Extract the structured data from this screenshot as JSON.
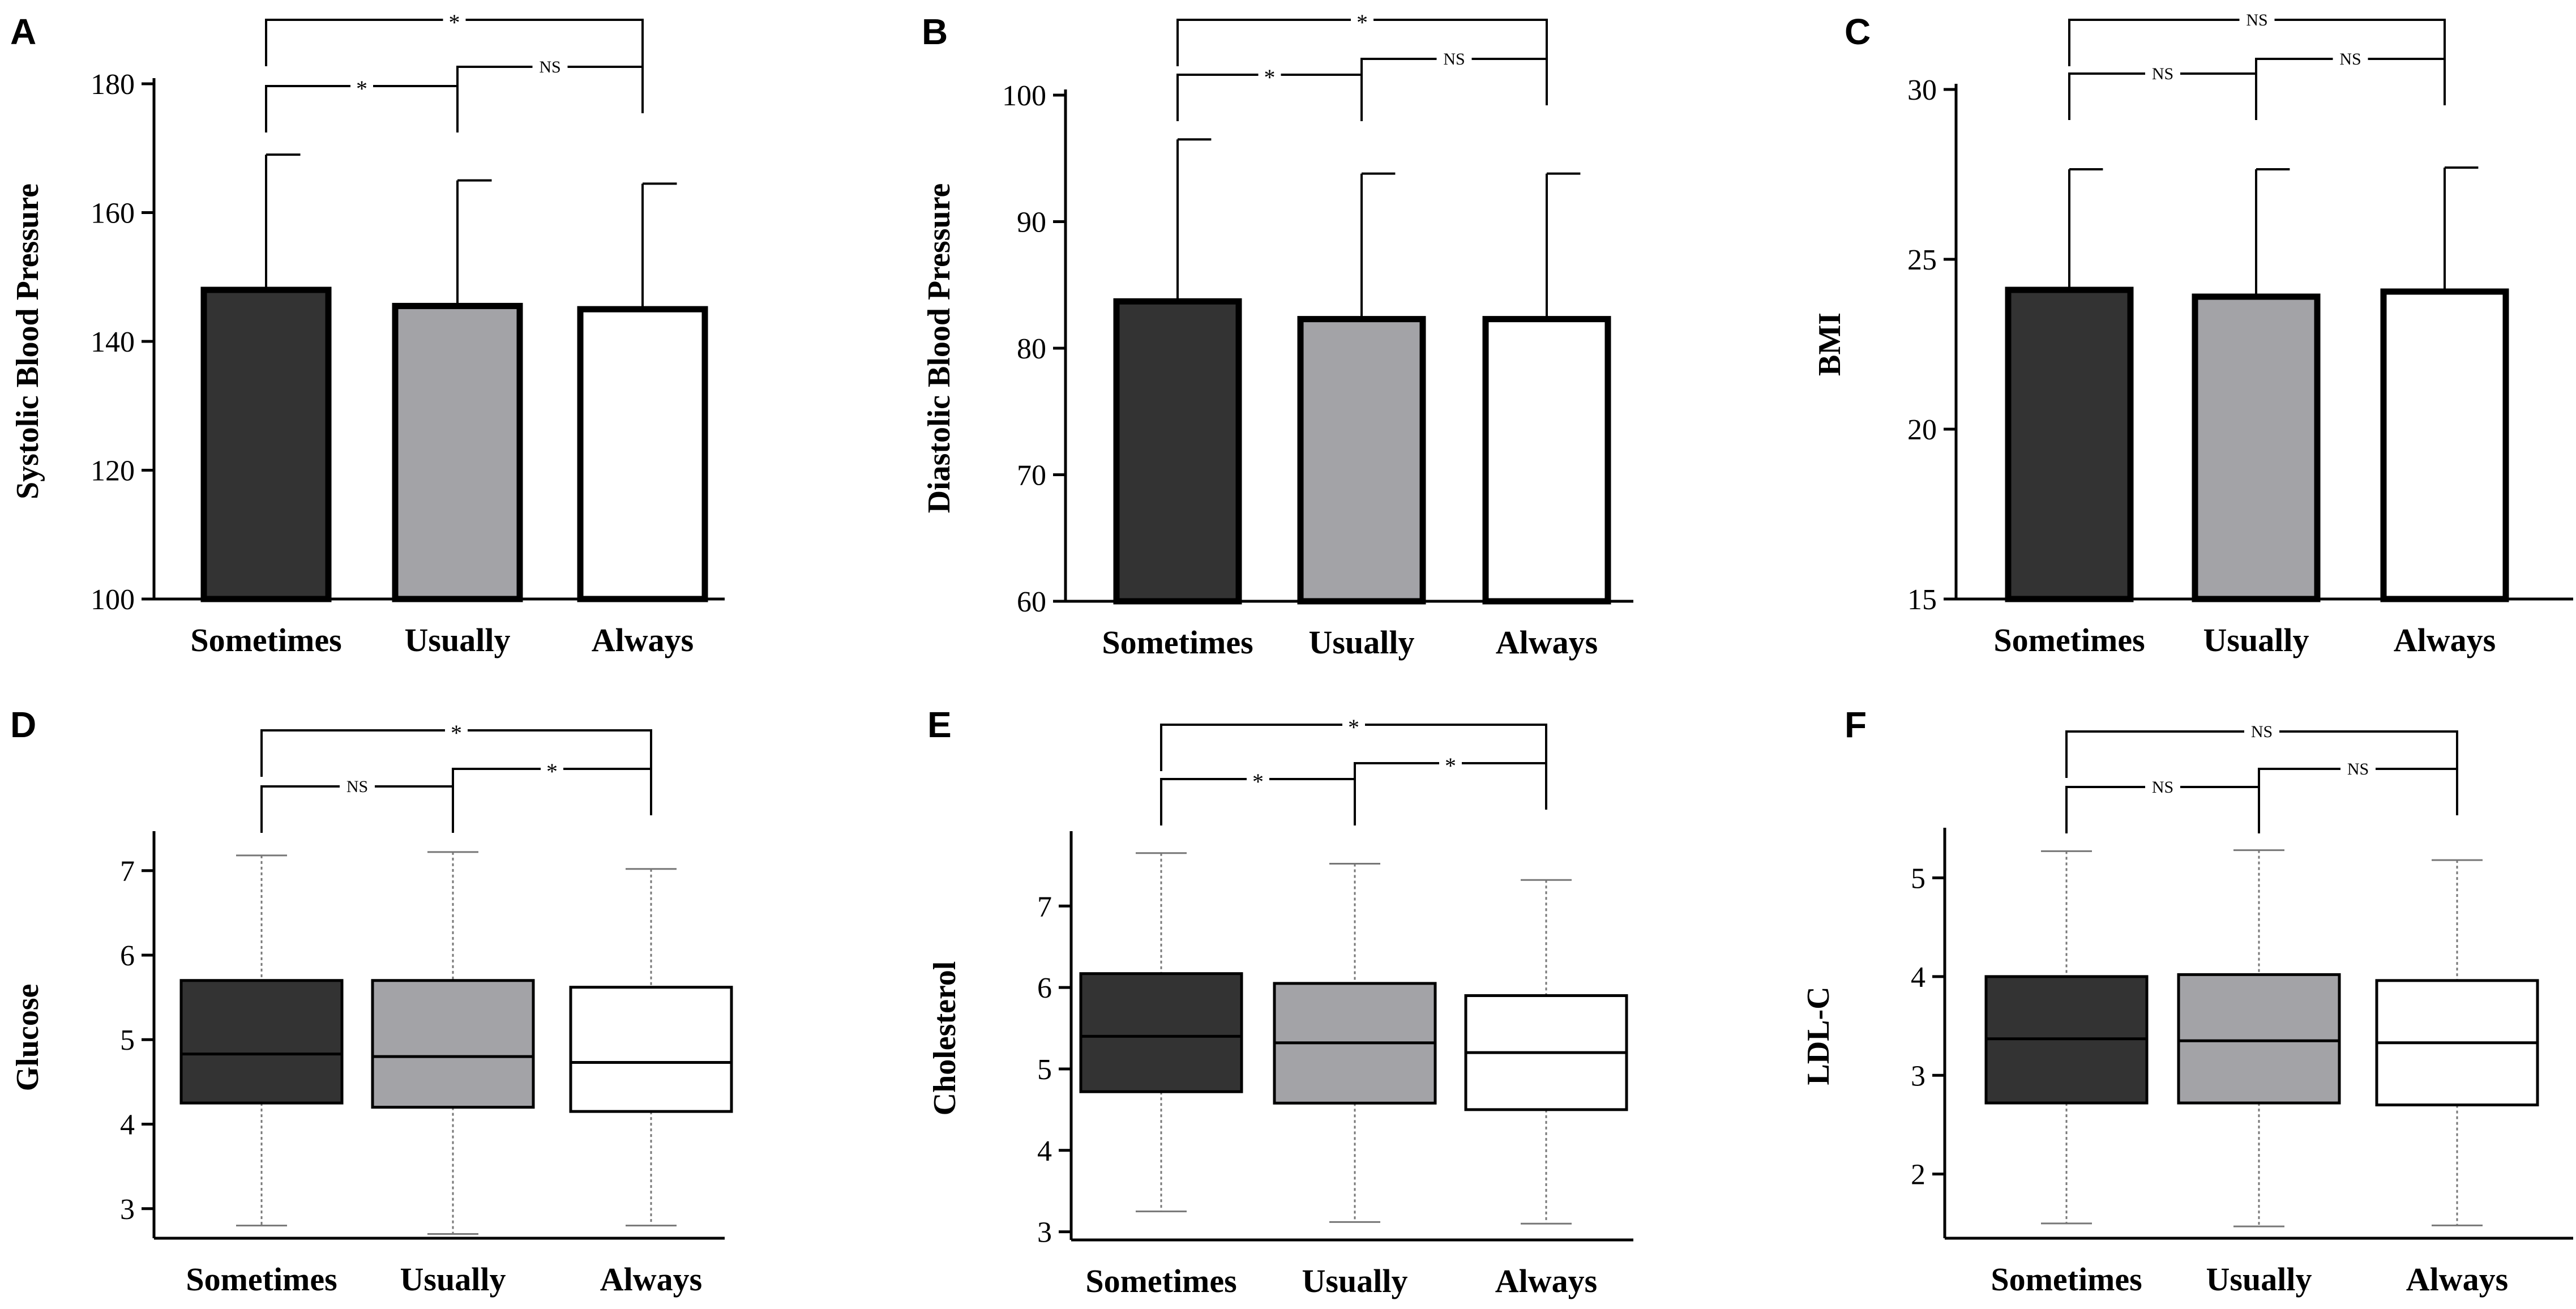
{
  "chart_data": [
    {
      "type": "bar",
      "panel": "A",
      "ylabel": "Systolic Blood Pressure",
      "categories": [
        "Sometimes",
        "Usually",
        "Always"
      ],
      "values": [
        148,
        145.5,
        145
      ],
      "error_upper": [
        169,
        165,
        164.5
      ],
      "ylim": [
        100,
        180
      ],
      "yticks": [
        "100",
        "120",
        "140",
        "160",
        "180"
      ],
      "fills": [
        "#333333",
        "#a3a3a7",
        "#ffffff"
      ],
      "comparisons": [
        {
          "from": 0,
          "to": 2,
          "label": "*"
        },
        {
          "from": 0,
          "to": 1,
          "label": "*"
        },
        {
          "from": 1,
          "to": 2,
          "label": "NS"
        }
      ]
    },
    {
      "type": "bar",
      "panel": "B",
      "ylabel": "Diastolic Blood Pressure",
      "categories": [
        "Sometimes",
        "Usually",
        "Always"
      ],
      "values": [
        83.7,
        82.3,
        82.3
      ],
      "error_upper": [
        96.5,
        93.8,
        93.8
      ],
      "ylim": [
        60,
        100
      ],
      "yticks": [
        "60",
        "70",
        "80",
        "90",
        "100"
      ],
      "fills": [
        "#333333",
        "#a3a3a7",
        "#ffffff"
      ],
      "comparisons": [
        {
          "from": 0,
          "to": 2,
          "label": "*"
        },
        {
          "from": 0,
          "to": 1,
          "label": "*"
        },
        {
          "from": 1,
          "to": 2,
          "label": "NS"
        }
      ]
    },
    {
      "type": "bar",
      "panel": "C",
      "ylabel": "BMI",
      "categories": [
        "Sometimes",
        "Usually",
        "Always"
      ],
      "values": [
        24.1,
        23.9,
        24.05
      ],
      "error_upper": [
        27.65,
        27.65,
        27.7
      ],
      "ylim": [
        15,
        30
      ],
      "yticks": [
        "15",
        "20",
        "25",
        "30"
      ],
      "fills": [
        "#333333",
        "#a3a3a7",
        "#ffffff"
      ],
      "comparisons": [
        {
          "from": 0,
          "to": 2,
          "label": "NS"
        },
        {
          "from": 0,
          "to": 1,
          "label": "NS"
        },
        {
          "from": 1,
          "to": 2,
          "label": "NS"
        }
      ]
    },
    {
      "type": "box",
      "panel": "D",
      "ylabel": "Glucose",
      "categories": [
        "Sometimes",
        "Usually",
        "Always"
      ],
      "boxes": [
        {
          "min": 2.8,
          "q1": 4.25,
          "median": 4.83,
          "q3": 5.7,
          "max": 7.18
        },
        {
          "min": 2.7,
          "q1": 4.2,
          "median": 4.8,
          "q3": 5.7,
          "max": 7.22
        },
        {
          "min": 2.8,
          "q1": 4.15,
          "median": 4.73,
          "q3": 5.62,
          "max": 7.02
        }
      ],
      "ylim": [
        2.65,
        7.4
      ],
      "yticks": [
        "3",
        "4",
        "5",
        "6",
        "7"
      ],
      "fills": [
        "#333333",
        "#a3a3a7",
        "#ffffff"
      ],
      "comparisons": [
        {
          "from": 0,
          "to": 2,
          "label": "*"
        },
        {
          "from": 0,
          "to": 1,
          "label": "NS"
        },
        {
          "from": 1,
          "to": 2,
          "label": "*"
        }
      ]
    },
    {
      "type": "box",
      "panel": "E",
      "ylabel": "Cholesterol",
      "categories": [
        "Sometimes",
        "Usually",
        "Always"
      ],
      "boxes": [
        {
          "min": 3.25,
          "q1": 4.72,
          "median": 5.4,
          "q3": 6.17,
          "max": 7.65
        },
        {
          "min": 3.12,
          "q1": 4.58,
          "median": 5.32,
          "q3": 6.05,
          "max": 7.52
        },
        {
          "min": 3.1,
          "q1": 4.5,
          "median": 5.2,
          "q3": 5.9,
          "max": 7.32
        }
      ],
      "ylim": [
        2.9,
        7.85
      ],
      "yticks": [
        "3",
        "4",
        "5",
        "6",
        "7"
      ],
      "fills": [
        "#333333",
        "#a3a3a7",
        "#ffffff"
      ],
      "comparisons": [
        {
          "from": 0,
          "to": 2,
          "label": "*"
        },
        {
          "from": 0,
          "to": 1,
          "label": "*"
        },
        {
          "from": 1,
          "to": 2,
          "label": "*"
        }
      ]
    },
    {
      "type": "box",
      "panel": "F",
      "ylabel": "LDL-C",
      "categories": [
        "Sometimes",
        "Usually",
        "Always"
      ],
      "boxes": [
        {
          "min": 1.5,
          "q1": 2.72,
          "median": 3.37,
          "q3": 4.0,
          "max": 5.27
        },
        {
          "min": 1.47,
          "q1": 2.72,
          "median": 3.35,
          "q3": 4.02,
          "max": 5.28
        },
        {
          "min": 1.48,
          "q1": 2.7,
          "median": 3.33,
          "q3": 3.96,
          "max": 5.18
        }
      ],
      "ylim": [
        1.35,
        5.45
      ],
      "yticks": [
        "2",
        "3",
        "4",
        "5"
      ],
      "fills": [
        "#333333",
        "#a3a3a7",
        "#ffffff"
      ],
      "comparisons": [
        {
          "from": 0,
          "to": 2,
          "label": "NS"
        },
        {
          "from": 0,
          "to": 1,
          "label": "NS"
        },
        {
          "from": 1,
          "to": 2,
          "label": "NS"
        }
      ]
    }
  ]
}
